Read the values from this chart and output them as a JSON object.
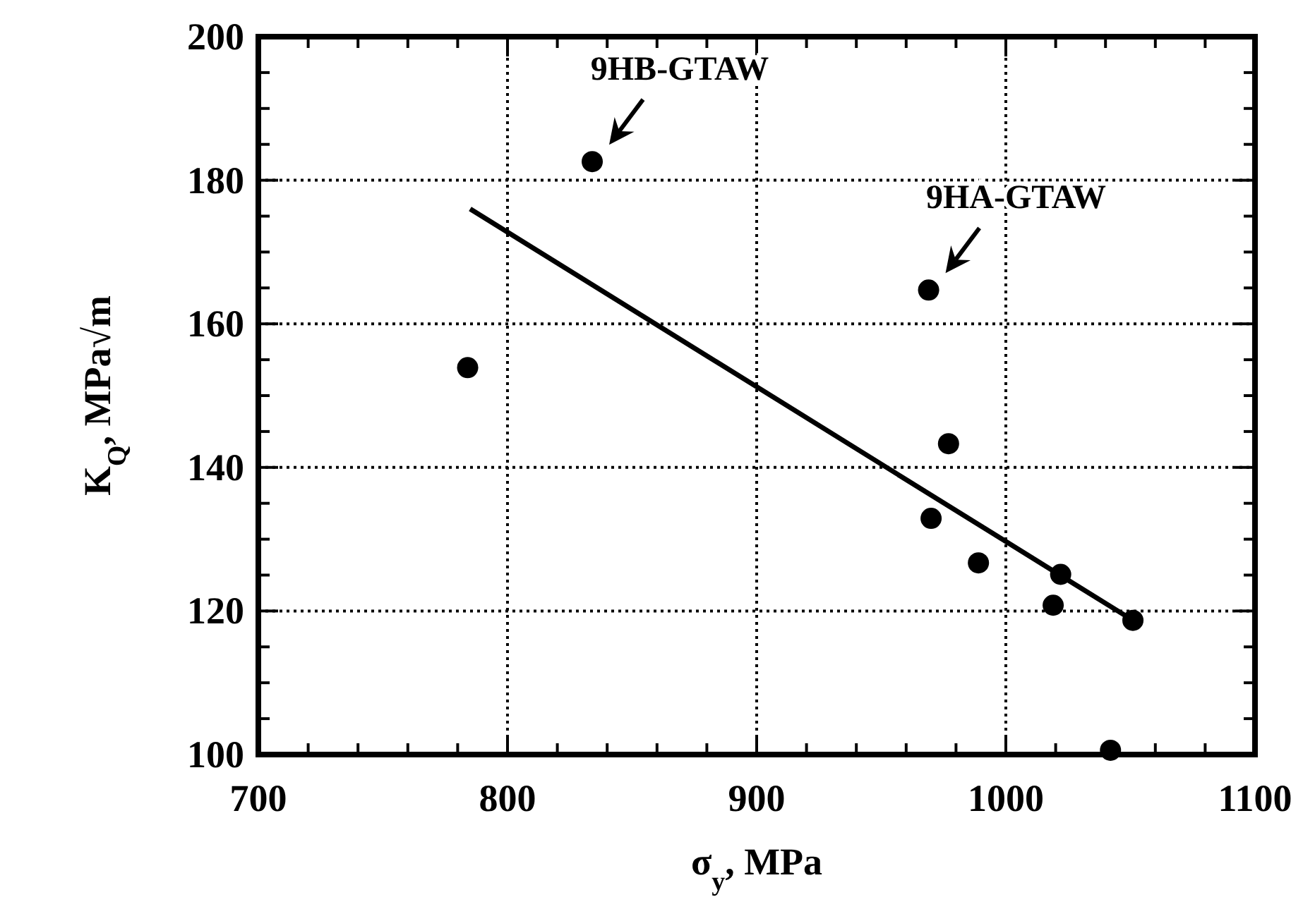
{
  "chart_data": {
    "type": "scatter",
    "xlabel": "σ$_{y}$, MPa",
    "ylabel": "K$_{Q}$, MPa√m",
    "xlim": [
      700,
      1100
    ],
    "ylim": [
      100,
      200
    ],
    "xticks": [
      700,
      {
        "value": 720,
        "label": null
      },
      {
        "value": 740,
        "label": null
      },
      {
        "value": 760,
        "label": null
      },
      {
        "value": 780,
        "label": null
      },
      800,
      {
        "value": 820,
        "label": null
      },
      {
        "value": 840,
        "label": null
      },
      {
        "value": 860,
        "label": null
      },
      {
        "value": 880,
        "label": null
      },
      900,
      {
        "value": 920,
        "label": null
      },
      {
        "value": 940,
        "label": null
      },
      {
        "value": 960,
        "label": null
      },
      {
        "value": 980,
        "label": null
      },
      1000,
      {
        "value": 1020,
        "label": null
      },
      {
        "value": 1040,
        "label": null
      },
      {
        "value": 1060,
        "label": null
      },
      {
        "value": 1080,
        "label": null
      },
      1100
    ],
    "yticks": [
      100,
      {
        "value": 105,
        "label": null
      },
      {
        "value": 110,
        "label": null
      },
      {
        "value": 115,
        "label": null
      },
      120,
      {
        "value": 125,
        "label": null
      },
      {
        "value": 130,
        "label": null
      },
      {
        "value": 135,
        "label": null
      },
      140,
      {
        "value": 145,
        "label": null
      },
      {
        "value": 150,
        "label": null
      },
      {
        "value": 155,
        "label": null
      },
      160,
      {
        "value": 165,
        "label": null
      },
      {
        "value": 170,
        "label": null
      },
      {
        "value": 175,
        "label": null
      },
      180,
      {
        "value": 185,
        "label": null
      },
      {
        "value": 190,
        "label": null
      },
      {
        "value": 195,
        "label": null
      },
      200
    ],
    "grid": true,
    "series": [
      {
        "marker": "circle",
        "color": "#000000",
        "x": [
          784,
          834,
          969,
          977,
          970,
          989,
          1022,
          1019,
          1051,
          1042
        ],
        "values": [
          153.9,
          182.6,
          164.7,
          143.3,
          132.9,
          126.7,
          125.1,
          120.8,
          118.7,
          100.6
        ]
      },
      {
        "type": "line",
        "color": "#000000",
        "line_style": "solid",
        "x": [
          785,
          1051
        ],
        "values": [
          176,
          118.7
        ]
      }
    ],
    "annotations": [
      {
        "text": "9HB-GTAW",
        "x": 834,
        "y": 182.6
      },
      {
        "text": "9HA-GTAW",
        "x": 969,
        "y": 164.7
      }
    ]
  }
}
